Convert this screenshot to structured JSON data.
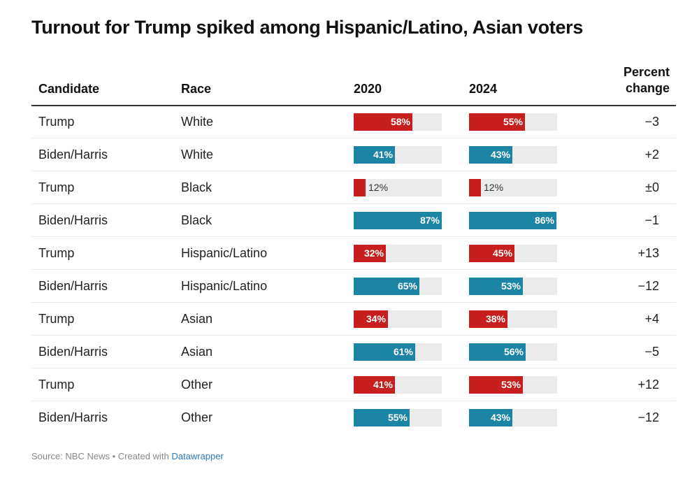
{
  "title": "Turnout for Trump spiked among Hispanic/Latino, Asian voters",
  "colors": {
    "trump": "#c71e1e",
    "biden_harris": "#1c85a5",
    "bar_background": "#ebebeb"
  },
  "chart_data": {
    "type": "table",
    "title": "Turnout for Trump spiked among Hispanic/Latino, Asian voters",
    "columns": {
      "candidate": "Candidate",
      "race": "Race",
      "y2020": "2020",
      "y2024": "2024",
      "pct_line1": "Percent",
      "pct_line2": "change"
    },
    "rows": [
      {
        "candidate": "Trump",
        "race": "White",
        "v2020": 58,
        "v2024": 55,
        "label2020": "58%",
        "label2024": "55%",
        "change": "−3",
        "party": "trump"
      },
      {
        "candidate": "Biden/Harris",
        "race": "White",
        "v2020": 41,
        "v2024": 43,
        "label2020": "41%",
        "label2024": "43%",
        "change": "+2",
        "party": "biden_harris"
      },
      {
        "candidate": "Trump",
        "race": "Black",
        "v2020": 12,
        "v2024": 12,
        "label2020": "12%",
        "label2024": "12%",
        "change": "±0",
        "party": "trump"
      },
      {
        "candidate": "Biden/Harris",
        "race": "Black",
        "v2020": 87,
        "v2024": 86,
        "label2020": "87%",
        "label2024": "86%",
        "change": "−1",
        "party": "biden_harris"
      },
      {
        "candidate": "Trump",
        "race": "Hispanic/Latino",
        "v2020": 32,
        "v2024": 45,
        "label2020": "32%",
        "label2024": "45%",
        "change": "+13",
        "party": "trump"
      },
      {
        "candidate": "Biden/Harris",
        "race": "Hispanic/Latino",
        "v2020": 65,
        "v2024": 53,
        "label2020": "65%",
        "label2024": "53%",
        "change": "−12",
        "party": "biden_harris"
      },
      {
        "candidate": "Trump",
        "race": "Asian",
        "v2020": 34,
        "v2024": 38,
        "label2020": "34%",
        "label2024": "38%",
        "change": "+4",
        "party": "trump"
      },
      {
        "candidate": "Biden/Harris",
        "race": "Asian",
        "v2020": 61,
        "v2024": 56,
        "label2020": "61%",
        "label2024": "56%",
        "change": "−5",
        "party": "biden_harris"
      },
      {
        "candidate": "Trump",
        "race": "Other",
        "v2020": 41,
        "v2024": 53,
        "label2020": "41%",
        "label2024": "53%",
        "change": "+12",
        "party": "trump"
      },
      {
        "candidate": "Biden/Harris",
        "race": "Other",
        "v2020": 55,
        "v2024": 43,
        "label2020": "55%",
        "label2024": "43%",
        "change": "−12",
        "party": "biden_harris"
      }
    ],
    "bar_max": 87
  },
  "footer": {
    "source": "Source: NBC News • Created with ",
    "link": "Datawrapper"
  }
}
